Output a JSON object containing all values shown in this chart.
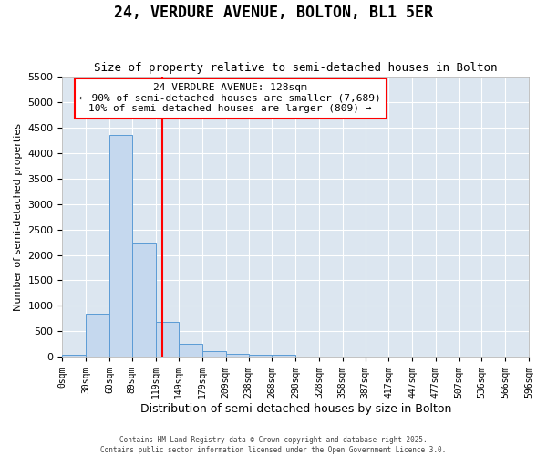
{
  "title": "24, VERDURE AVENUE, BOLTON, BL1 5ER",
  "subtitle": "Size of property relative to semi-detached houses in Bolton",
  "xlabel": "Distribution of semi-detached houses by size in Bolton",
  "ylabel": "Number of semi-detached properties",
  "bar_values": [
    50,
    850,
    4350,
    2250,
    680,
    260,
    120,
    70,
    50,
    40,
    0,
    0,
    0,
    0,
    0,
    0,
    0,
    0,
    0,
    0
  ],
  "bar_edges": [
    0,
    30,
    60,
    89,
    119,
    149,
    179,
    209,
    238,
    268,
    298,
    328,
    358,
    387,
    417,
    447,
    477,
    507,
    536,
    566,
    596
  ],
  "x_tick_labels": [
    "0sqm",
    "30sqm",
    "60sqm",
    "89sqm",
    "119sqm",
    "149sqm",
    "179sqm",
    "209sqm",
    "238sqm",
    "268sqm",
    "298sqm",
    "328sqm",
    "358sqm",
    "387sqm",
    "417sqm",
    "447sqm",
    "477sqm",
    "507sqm",
    "536sqm",
    "566sqm",
    "596sqm"
  ],
  "bar_color": "#c5d8ee",
  "bar_edge_color": "#5b9bd5",
  "red_line_x": 128,
  "annotation_title": "24 VERDURE AVENUE: 128sqm",
  "annotation_line1": "← 90% of semi-detached houses are smaller (7,689)",
  "annotation_line2": "10% of semi-detached houses are larger (809) →",
  "ylim": [
    0,
    5500
  ],
  "plot_bg_color": "#dce6f0",
  "fig_bg_color": "#ffffff",
  "grid_color": "#ffffff",
  "yticks": [
    0,
    500,
    1000,
    1500,
    2000,
    2500,
    3000,
    3500,
    4000,
    4500,
    5000,
    5500
  ],
  "footer_line1": "Contains HM Land Registry data © Crown copyright and database right 2025.",
  "footer_line2": "Contains public sector information licensed under the Open Government Licence 3.0."
}
